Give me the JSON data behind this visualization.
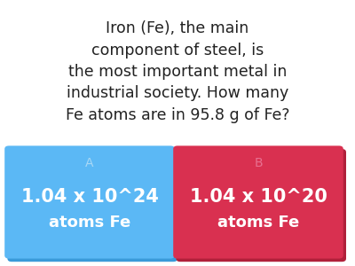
{
  "question": "Iron (Fe), the main\ncomponent of steel, is\nthe most important metal in\nindustrial society. How many\nFe atoms are in 95.8 g of Fe?",
  "options": [
    {
      "label": "A",
      "line1": "1.04 x 10^24",
      "line2": "atoms Fe",
      "bg_color": "#5BB8F5",
      "shadow_color": "#3A9AD9",
      "label_color": "#A8D8F5",
      "text_color": "#FFFFFF"
    },
    {
      "label": "B",
      "line1": "1.04 x 10^20",
      "line2": "atoms Fe",
      "bg_color": "#D93050",
      "shadow_color": "#B0203A",
      "label_color": "#E87090",
      "text_color": "#FFFFFF"
    }
  ],
  "background_color": "#FFFFFF",
  "question_fontsize": 12.5,
  "question_color": "#222222",
  "option_label_fontsize": 10,
  "option_main_fontsize": 15,
  "option_sub_fontsize": 13
}
